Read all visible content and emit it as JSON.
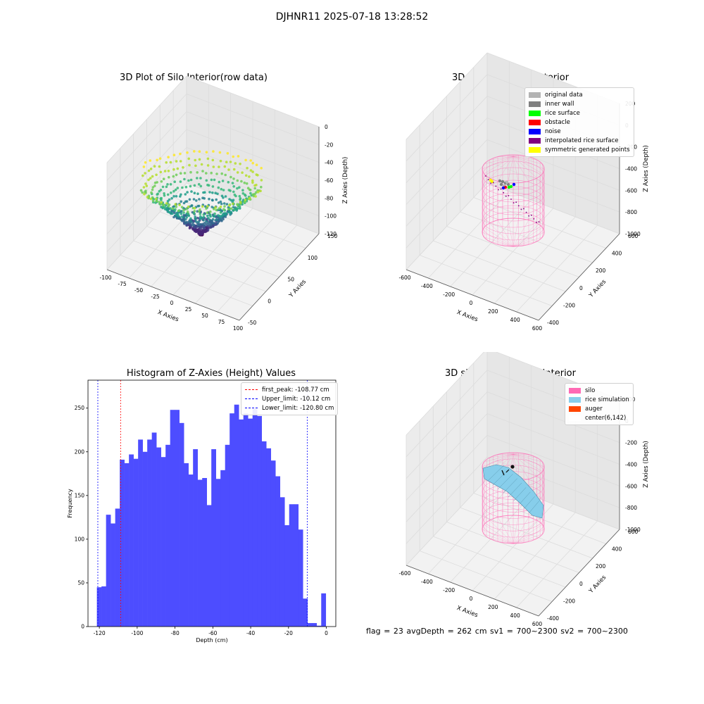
{
  "suptitle": "DJHNR11 2025-07-18 13:28:52",
  "status_text": "flag = 23  avgDepth = 262 cm  sv1 = 700~2300  sv2 = 700~2300",
  "colors": {
    "histogram_bar": "#4d4dff",
    "first_peak": "#ff0000",
    "limits": "#0000ff",
    "silo": "#ff69b4",
    "rice": "#87ceeb"
  },
  "chart_data": [
    {
      "type": "scatter",
      "subtype": "3d",
      "title": "3D Plot of Silo Interior(row data)",
      "xlabel": "X Axies",
      "ylabel": "Y Axies",
      "zlabel": "Z Axies (Depth)",
      "x_ticks": [
        "-100",
        "-75",
        "-50",
        "-25",
        "0",
        "25",
        "50",
        "75",
        "100"
      ],
      "y_ticks": [
        "-50",
        "0",
        "50",
        "100",
        "150"
      ],
      "z_ticks": [
        "0",
        "-20",
        "-40",
        "-60",
        "-80",
        "-100",
        "-120"
      ],
      "colormap": "viridis"
    },
    {
      "type": "scatter",
      "subtype": "3d",
      "title": "3D classify of Silo Interior",
      "xlabel": "X Axies",
      "ylabel": "Y Axies",
      "zlabel": "Z Axies (Depth)",
      "x_ticks": [
        "-600",
        "-400",
        "-200",
        "0",
        "200",
        "400",
        "600"
      ],
      "y_ticks": [
        "-400",
        "-200",
        "0",
        "200",
        "400",
        "600"
      ],
      "z_ticks": [
        "200",
        "0",
        "-200",
        "-400",
        "-600",
        "-800",
        "-1000"
      ],
      "legend": [
        {
          "label": "original data",
          "color": "#b3b3b3"
        },
        {
          "label": "inner wall",
          "color": "#808080"
        },
        {
          "label": "rice surface",
          "color": "#00ff00"
        },
        {
          "label": "obstacle",
          "color": "#ff0000"
        },
        {
          "label": "noise",
          "color": "#0000ff"
        },
        {
          "label": "interpolated rice surface",
          "color": "#800080"
        },
        {
          "label": "symmetric generated points",
          "color": "#ffff00"
        }
      ]
    },
    {
      "type": "bar",
      "subtype": "histogram",
      "title": "Histogram of Z-Axies (Height) Values",
      "xlabel": "Depth (cm)",
      "ylabel": "Frequency",
      "xlim": [
        -126,
        5
      ],
      "ylim": [
        0,
        282
      ],
      "x_ticks": [
        -120,
        -100,
        -80,
        -60,
        -40,
        -20,
        0
      ],
      "y_ticks": [
        0,
        50,
        100,
        150,
        200,
        250
      ],
      "bin_width": 2.42,
      "bin_start": -121.3,
      "values": [
        45,
        46,
        128,
        118,
        135,
        191,
        187,
        197,
        192,
        214,
        200,
        214,
        222,
        205,
        194,
        208,
        248,
        248,
        233,
        187,
        174,
        203,
        168,
        170,
        139,
        203,
        169,
        179,
        208,
        244,
        254,
        237,
        244,
        238,
        249,
        241,
        212,
        204,
        190,
        172,
        148,
        116,
        140,
        140,
        111,
        32,
        4,
        4,
        1,
        38
      ],
      "lines": [
        {
          "label": "first_peak: -108.77 cm",
          "x": -108.77,
          "color": "#ff0000"
        },
        {
          "label": "Upper_limit: -10.12 cm",
          "x": -10.12,
          "color": "#0000ff"
        },
        {
          "label": "Lower_limit: -120.80 cm",
          "x": -120.8,
          "color": "#0000ff"
        }
      ]
    },
    {
      "type": "scatter",
      "subtype": "3d",
      "title": "3D simulation of Silo Interior",
      "xlabel": "X Axies",
      "ylabel": "Y Axies",
      "zlabel": "Z Axies (Depth)",
      "x_ticks": [
        "-600",
        "-400",
        "-200",
        "0",
        "200",
        "400",
        "600"
      ],
      "y_ticks": [
        "-400",
        "-200",
        "0",
        "200",
        "400",
        "600"
      ],
      "z_ticks": [
        "200",
        "0",
        "-200",
        "-400",
        "-600",
        "-800",
        "-1000"
      ],
      "legend": [
        {
          "label": "silo",
          "color": "#ff69b4"
        },
        {
          "label": "rice simulation",
          "color": "#87ceeb"
        },
        {
          "label": "auger",
          "color": "#ff4500"
        },
        {
          "label": "center(6,142)",
          "color": "#ffffff"
        }
      ]
    }
  ]
}
